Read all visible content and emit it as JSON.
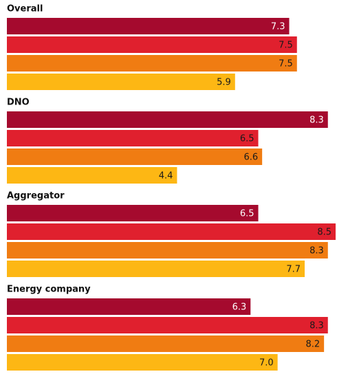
{
  "chart_data": {
    "type": "bar",
    "orientation": "horizontal",
    "categories": [
      "Overall",
      "DNO",
      "Aggregator",
      "Energy company"
    ],
    "series": [
      {
        "color": "#a50a2e",
        "values": [
          7.3,
          8.3,
          6.5,
          6.3
        ],
        "value_labels": [
          "7.3",
          "8.3",
          "6.5",
          "6.3"
        ],
        "label_color": "#ffffff"
      },
      {
        "color": "#e0202e",
        "values": [
          7.5,
          6.5,
          8.5,
          8.3
        ],
        "value_labels": [
          "7.5",
          "6.5",
          "8.5",
          "8.3"
        ],
        "label_color": "#1a1a1a"
      },
      {
        "color": "#f07c12",
        "values": [
          7.5,
          6.6,
          8.3,
          8.2
        ],
        "value_labels": [
          "7.5",
          "6.6",
          "8.3",
          "8.2"
        ],
        "label_color": "#1a1a1a"
      },
      {
        "color": "#fdb714",
        "values": [
          5.9,
          4.4,
          7.7,
          7.0
        ],
        "value_labels": [
          "5.9",
          "4.4",
          "7.7",
          "7.0"
        ],
        "label_color": "#1a1a1a"
      }
    ]
  }
}
